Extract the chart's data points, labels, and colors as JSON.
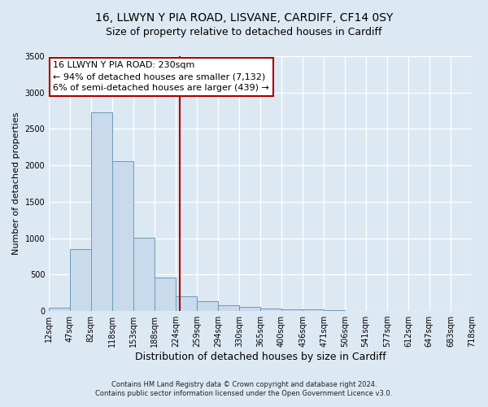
{
  "title1": "16, LLWYN Y PIA ROAD, LISVANE, CARDIFF, CF14 0SY",
  "title2": "Size of property relative to detached houses in Cardiff",
  "xlabel": "Distribution of detached houses by size in Cardiff",
  "ylabel": "Number of detached properties",
  "bin_edges": [
    12,
    47,
    82,
    118,
    153,
    188,
    224,
    259,
    294,
    330,
    365,
    400,
    436,
    471,
    506,
    541,
    577,
    612,
    647,
    683,
    718
  ],
  "bar_heights": [
    50,
    850,
    2730,
    2060,
    1010,
    455,
    200,
    140,
    80,
    55,
    35,
    20,
    20,
    15,
    5,
    3,
    2,
    1,
    1,
    0
  ],
  "bar_color": "#c8daec",
  "bar_edge_color": "#6b9ab8",
  "property_value": 230,
  "vline_color": "#aa0000",
  "annotation_line1": "16 LLWYN Y PIA ROAD: 230sqm",
  "annotation_line2": "← 94% of detached houses are smaller (7,132)",
  "annotation_line3": "6% of semi-detached houses are larger (439) →",
  "annotation_box_facecolor": "#ffffff",
  "annotation_box_edgecolor": "#aa0000",
  "ylim": [
    0,
    3500
  ],
  "yticks": [
    0,
    500,
    1000,
    1500,
    2000,
    2500,
    3000,
    3500
  ],
  "bg_color": "#dde9f2",
  "grid_color": "#ffffff",
  "title1_fontsize": 10,
  "title2_fontsize": 9,
  "xlabel_fontsize": 9,
  "ylabel_fontsize": 8,
  "tick_fontsize": 7,
  "footer1": "Contains HM Land Registry data © Crown copyright and database right 2024.",
  "footer2": "Contains public sector information licensed under the Open Government Licence v3.0."
}
